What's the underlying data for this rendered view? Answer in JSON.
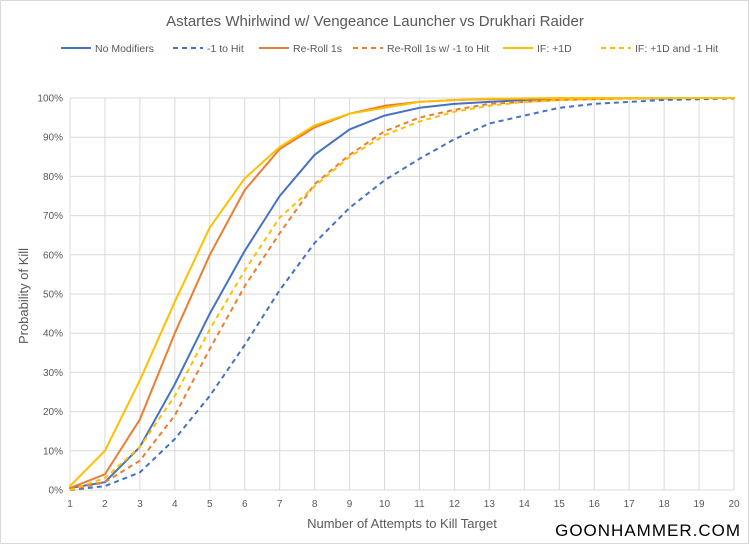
{
  "chart_data": {
    "type": "line",
    "title": "Astartes Whirlwind w/ Vengeance Launcher vs Drukhari Raider",
    "xlabel": "Number of Attempts to Kill Target",
    "ylabel": "Probability of Kill",
    "x": [
      1,
      2,
      3,
      4,
      5,
      6,
      7,
      8,
      9,
      10,
      11,
      12,
      13,
      14,
      15,
      16,
      17,
      18,
      19,
      20
    ],
    "xlim": [
      1,
      20
    ],
    "ylim": [
      0,
      1
    ],
    "yticks": [
      0,
      0.1,
      0.2,
      0.3,
      0.4,
      0.5,
      0.6,
      0.7,
      0.8,
      0.9,
      1.0
    ],
    "ytick_labels": [
      "0%",
      "10%",
      "20%",
      "30%",
      "40%",
      "50%",
      "60%",
      "70%",
      "80%",
      "90%",
      "100%"
    ],
    "grid": true,
    "legend_position": "top",
    "series": [
      {
        "name": "No Modifiers",
        "color": "#4472C4",
        "dash": "solid",
        "values": [
          0.005,
          0.02,
          0.11,
          0.27,
          0.45,
          0.61,
          0.75,
          0.855,
          0.92,
          0.955,
          0.975,
          0.985,
          0.99,
          0.995,
          0.997,
          0.998,
          0.999,
          0.999,
          1.0,
          1.0
        ]
      },
      {
        "name": "-1 to Hit",
        "color": "#4472C4",
        "dash": "dashed",
        "values": [
          0.0,
          0.01,
          0.045,
          0.13,
          0.24,
          0.37,
          0.51,
          0.63,
          0.72,
          0.79,
          0.845,
          0.895,
          0.935,
          0.955,
          0.975,
          0.985,
          0.99,
          0.995,
          0.997,
          0.999
        ]
      },
      {
        "name": "Re-Roll 1s",
        "color": "#ED7D31",
        "dash": "solid",
        "values": [
          0.005,
          0.04,
          0.18,
          0.4,
          0.6,
          0.765,
          0.87,
          0.925,
          0.96,
          0.98,
          0.99,
          0.995,
          0.997,
          0.998,
          0.999,
          1.0,
          1.0,
          1.0,
          1.0,
          1.0
        ]
      },
      {
        "name": "Re-Roll 1s w/ -1 to Hit",
        "color": "#ED7D31",
        "dash": "dashed",
        "values": [
          0.0,
          0.02,
          0.075,
          0.19,
          0.36,
          0.52,
          0.655,
          0.78,
          0.855,
          0.915,
          0.95,
          0.97,
          0.985,
          0.99,
          0.995,
          0.997,
          0.999,
          1.0,
          1.0,
          1.0
        ]
      },
      {
        "name": "IF: +1D",
        "color": "#FFC000",
        "dash": "solid",
        "values": [
          0.01,
          0.1,
          0.28,
          0.48,
          0.67,
          0.795,
          0.875,
          0.93,
          0.96,
          0.975,
          0.99,
          0.995,
          0.998,
          0.999,
          1.0,
          1.0,
          1.0,
          1.0,
          1.0,
          1.0
        ]
      },
      {
        "name": "IF: +1D and -1 Hit",
        "color": "#FFC000",
        "dash": "dashed",
        "values": [
          0.0,
          0.03,
          0.11,
          0.24,
          0.41,
          0.56,
          0.695,
          0.775,
          0.85,
          0.905,
          0.94,
          0.965,
          0.98,
          0.99,
          0.995,
          0.997,
          0.999,
          1.0,
          1.0,
          1.0
        ]
      }
    ]
  },
  "watermark": "GOONHAMMER.COM"
}
